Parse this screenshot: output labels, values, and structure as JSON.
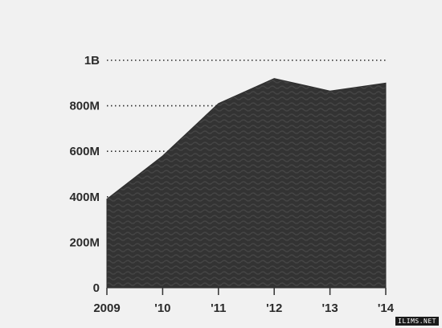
{
  "chart_data": {
    "type": "area",
    "categories": [
      "2009",
      "'10",
      "'11",
      "'12",
      "'13",
      "'14"
    ],
    "values": [
      390,
      580,
      810,
      920,
      865,
      900
    ],
    "ylim": [
      0,
      1000
    ],
    "y_ticks": [
      0,
      200,
      400,
      600,
      800,
      1000
    ],
    "y_tick_labels": [
      "0",
      "200M",
      "400M",
      "600M",
      "800M",
      "1B"
    ],
    "grid": "dotted horizontal",
    "fill_color": "#333333",
    "text_color": "#2b2b2b"
  },
  "watermark": "ILIMS.NET"
}
